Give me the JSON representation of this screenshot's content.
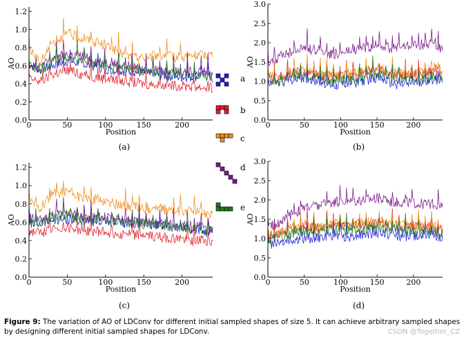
{
  "figure_caption": {
    "label": "Figure 9:",
    "text": "The variation of AO of LDConv for different initial sampled shapes of size 5. It can achieve arbitrary sampled shapes by designing different initial sampled shapes for LDConv."
  },
  "watermark": "CSDN @Together_CZ",
  "legend": [
    {
      "key": "a",
      "color": "#1f1fd6",
      "shape_cells": [
        [
          0,
          0
        ],
        [
          2,
          0
        ],
        [
          1,
          1
        ],
        [
          0,
          2
        ],
        [
          2,
          2
        ]
      ]
    },
    {
      "key": "b",
      "color": "#e0202a",
      "shape_cells": [
        [
          0,
          0
        ],
        [
          1,
          0
        ],
        [
          2,
          0
        ],
        [
          0,
          1
        ],
        [
          2,
          1
        ]
      ]
    },
    {
      "key": "c",
      "color": "#f0901f",
      "shape_cells": [
        [
          0,
          0
        ],
        [
          1,
          0
        ],
        [
          2,
          0
        ],
        [
          3,
          0
        ],
        [
          1,
          1
        ]
      ]
    },
    {
      "key": "d",
      "color": "#7a1a8c",
      "shape_cells": [
        [
          0,
          0
        ],
        [
          1,
          1
        ],
        [
          2,
          2
        ],
        [
          3,
          3
        ],
        [
          4,
          4
        ]
      ]
    },
    {
      "key": "e",
      "color": "#1f7a1f",
      "shape_cells": [
        [
          0,
          0
        ],
        [
          0,
          1
        ],
        [
          1,
          1
        ],
        [
          2,
          1
        ],
        [
          3,
          1
        ]
      ]
    }
  ],
  "chart_data": [
    {
      "panel": "(a)",
      "type": "line",
      "xlabel": "Position",
      "ylabel": "AO",
      "xlim": [
        0,
        240
      ],
      "ylim": [
        0,
        1.25
      ],
      "xticks": [
        0,
        50,
        100,
        150,
        200
      ],
      "yticks": [
        0.0,
        0.2,
        0.4,
        0.6,
        0.8,
        1.0,
        1.2
      ],
      "ytick_labels": [
        "0.0",
        "0.2",
        "0.4",
        "0.6",
        "0.8",
        "1.0",
        "1.2"
      ],
      "series": [
        {
          "name": "a",
          "color": "#1f1fd6",
          "x": [
            0,
            15,
            30,
            50,
            70,
            90,
            110,
            130,
            150,
            170,
            190,
            210,
            230,
            240
          ],
          "y": [
            0.62,
            0.55,
            0.6,
            0.65,
            0.62,
            0.58,
            0.55,
            0.54,
            0.52,
            0.5,
            0.48,
            0.47,
            0.5,
            0.45
          ]
        },
        {
          "name": "b",
          "color": "#e0202a",
          "x": [
            0,
            15,
            30,
            50,
            70,
            90,
            110,
            130,
            150,
            170,
            190,
            210,
            230,
            240
          ],
          "y": [
            0.45,
            0.42,
            0.5,
            0.55,
            0.5,
            0.47,
            0.44,
            0.42,
            0.4,
            0.38,
            0.38,
            0.37,
            0.36,
            0.35
          ]
        },
        {
          "name": "c",
          "color": "#f0901f",
          "x": [
            0,
            15,
            30,
            50,
            70,
            90,
            110,
            130,
            150,
            170,
            190,
            210,
            230,
            240
          ],
          "y": [
            0.8,
            0.62,
            0.85,
            0.95,
            0.9,
            0.85,
            0.78,
            0.7,
            0.68,
            0.72,
            0.7,
            0.7,
            0.72,
            0.72
          ]
        },
        {
          "name": "d",
          "color": "#7a1a8c",
          "x": [
            0,
            15,
            30,
            50,
            70,
            90,
            110,
            130,
            150,
            170,
            190,
            210,
            230,
            240
          ],
          "y": [
            0.62,
            0.58,
            0.68,
            0.72,
            0.7,
            0.65,
            0.62,
            0.6,
            0.57,
            0.55,
            0.55,
            0.53,
            0.55,
            0.52
          ]
        },
        {
          "name": "e",
          "color": "#1f7a1f",
          "x": [
            0,
            15,
            30,
            50,
            70,
            90,
            110,
            130,
            150,
            170,
            190,
            210,
            230,
            240
          ],
          "y": [
            0.6,
            0.55,
            0.65,
            0.7,
            0.66,
            0.62,
            0.58,
            0.56,
            0.54,
            0.52,
            0.5,
            0.5,
            0.48,
            0.47
          ]
        }
      ]
    },
    {
      "panel": "(b)",
      "type": "line",
      "xlabel": "Position",
      "ylabel": "AO",
      "xlim": [
        0,
        240
      ],
      "ylim": [
        0,
        3.0
      ],
      "xticks": [
        0,
        50,
        100,
        150,
        200
      ],
      "yticks": [
        0.0,
        0.5,
        1.0,
        1.5,
        2.0,
        2.5,
        3.0
      ],
      "ytick_labels": [
        "0.0",
        "0.5",
        "1.0",
        "1.5",
        "2.0",
        "2.5",
        "3.0"
      ],
      "series": [
        {
          "name": "a",
          "color": "#1f1fd6",
          "x": [
            0,
            15,
            30,
            50,
            70,
            90,
            110,
            130,
            150,
            170,
            190,
            210,
            230,
            240
          ],
          "y": [
            1.0,
            0.95,
            1.05,
            1.1,
            1.0,
            0.9,
            0.95,
            1.0,
            1.1,
            0.95,
            0.9,
            1.0,
            1.05,
            1.0
          ]
        },
        {
          "name": "b",
          "color": "#e0202a",
          "x": [
            0,
            15,
            30,
            50,
            70,
            90,
            110,
            130,
            150,
            170,
            190,
            210,
            230,
            240
          ],
          "y": [
            1.1,
            1.05,
            1.2,
            1.25,
            1.15,
            1.1,
            1.15,
            1.2,
            1.3,
            1.2,
            1.15,
            1.2,
            1.3,
            1.2
          ]
        },
        {
          "name": "c",
          "color": "#f0901f",
          "x": [
            0,
            15,
            30,
            50,
            70,
            90,
            110,
            130,
            150,
            170,
            190,
            210,
            230,
            240
          ],
          "y": [
            1.15,
            1.1,
            1.25,
            1.3,
            1.2,
            1.15,
            1.2,
            1.25,
            1.35,
            1.25,
            1.2,
            1.25,
            1.35,
            1.3
          ]
        },
        {
          "name": "d",
          "color": "#7a1a8c",
          "x": [
            0,
            15,
            30,
            50,
            70,
            90,
            110,
            130,
            150,
            170,
            190,
            210,
            230,
            240
          ],
          "y": [
            1.5,
            1.6,
            1.75,
            1.85,
            1.8,
            1.7,
            1.75,
            1.85,
            1.95,
            1.85,
            1.9,
            1.95,
            2.0,
            1.8
          ]
        },
        {
          "name": "e",
          "color": "#1f7a1f",
          "x": [
            0,
            15,
            30,
            50,
            70,
            90,
            110,
            130,
            150,
            170,
            190,
            210,
            230,
            240
          ],
          "y": [
            1.05,
            1.0,
            1.1,
            1.2,
            1.1,
            1.0,
            1.05,
            1.1,
            1.2,
            1.1,
            1.05,
            1.1,
            1.15,
            1.05
          ]
        }
      ]
    },
    {
      "panel": "(c)",
      "type": "line",
      "xlabel": "Position",
      "ylabel": "AO",
      "xlim": [
        0,
        240
      ],
      "ylim": [
        0,
        1.25
      ],
      "xticks": [
        0,
        50,
        100,
        150,
        200
      ],
      "yticks": [
        0.0,
        0.2,
        0.4,
        0.6,
        0.8,
        1.0,
        1.2
      ],
      "ytick_labels": [
        "0.0",
        "0.2",
        "0.4",
        "0.6",
        "0.8",
        "1.0",
        "1.2"
      ],
      "series": [
        {
          "name": "a",
          "color": "#1f1fd6",
          "x": [
            0,
            15,
            30,
            50,
            70,
            90,
            110,
            130,
            150,
            170,
            190,
            210,
            230,
            240
          ],
          "y": [
            0.6,
            0.58,
            0.62,
            0.63,
            0.6,
            0.62,
            0.6,
            0.58,
            0.6,
            0.56,
            0.55,
            0.52,
            0.5,
            0.48
          ]
        },
        {
          "name": "b",
          "color": "#e0202a",
          "x": [
            0,
            15,
            30,
            50,
            70,
            90,
            110,
            130,
            150,
            170,
            190,
            210,
            230,
            240
          ],
          "y": [
            0.5,
            0.48,
            0.52,
            0.55,
            0.5,
            0.5,
            0.48,
            0.47,
            0.46,
            0.44,
            0.42,
            0.4,
            0.4,
            0.38
          ]
        },
        {
          "name": "c",
          "color": "#f0901f",
          "x": [
            0,
            15,
            30,
            50,
            70,
            90,
            110,
            130,
            150,
            170,
            190,
            210,
            230,
            240
          ],
          "y": [
            0.85,
            0.75,
            0.9,
            0.95,
            0.85,
            0.85,
            0.8,
            0.78,
            0.75,
            0.75,
            0.72,
            0.72,
            0.7,
            0.7
          ]
        },
        {
          "name": "d",
          "color": "#7a1a8c",
          "x": [
            0,
            15,
            30,
            50,
            70,
            90,
            110,
            130,
            150,
            170,
            190,
            210,
            230,
            240
          ],
          "y": [
            0.65,
            0.62,
            0.68,
            0.7,
            0.66,
            0.66,
            0.63,
            0.62,
            0.6,
            0.58,
            0.57,
            0.56,
            0.55,
            0.52
          ]
        },
        {
          "name": "e",
          "color": "#1f7a1f",
          "x": [
            0,
            15,
            30,
            50,
            70,
            90,
            110,
            130,
            150,
            170,
            190,
            210,
            230,
            240
          ],
          "y": [
            0.62,
            0.6,
            0.65,
            0.68,
            0.63,
            0.63,
            0.6,
            0.6,
            0.58,
            0.56,
            0.55,
            0.53,
            0.52,
            0.5
          ]
        }
      ]
    },
    {
      "panel": "(d)",
      "type": "line",
      "xlabel": "Position",
      "ylabel": "AO",
      "xlim": [
        0,
        240
      ],
      "ylim": [
        0,
        3.0
      ],
      "xticks": [
        0,
        50,
        100,
        150,
        200
      ],
      "yticks": [
        0.0,
        0.5,
        1.0,
        1.5,
        2.0,
        2.5,
        3.0
      ],
      "ytick_labels": [
        "0.0",
        "0.5",
        "1.0",
        "1.5",
        "2.0",
        "2.5",
        "3.0"
      ],
      "series": [
        {
          "name": "a",
          "color": "#1f1fd6",
          "x": [
            0,
            15,
            30,
            50,
            70,
            90,
            110,
            130,
            150,
            170,
            190,
            210,
            230,
            240
          ],
          "y": [
            0.85,
            0.9,
            0.95,
            1.0,
            1.0,
            1.1,
            1.05,
            1.1,
            1.15,
            1.1,
            1.05,
            1.1,
            1.1,
            1.0
          ]
        },
        {
          "name": "b",
          "color": "#e0202a",
          "x": [
            0,
            15,
            30,
            50,
            70,
            90,
            110,
            130,
            150,
            170,
            190,
            210,
            230,
            240
          ],
          "y": [
            1.05,
            1.1,
            1.2,
            1.3,
            1.25,
            1.35,
            1.3,
            1.35,
            1.4,
            1.35,
            1.3,
            1.3,
            1.3,
            1.2
          ]
        },
        {
          "name": "c",
          "color": "#f0901f",
          "x": [
            0,
            15,
            30,
            50,
            70,
            90,
            110,
            130,
            150,
            170,
            190,
            210,
            230,
            240
          ],
          "y": [
            1.1,
            1.15,
            1.25,
            1.35,
            1.3,
            1.4,
            1.35,
            1.4,
            1.45,
            1.4,
            1.35,
            1.35,
            1.35,
            1.25
          ]
        },
        {
          "name": "d",
          "color": "#7a1a8c",
          "x": [
            0,
            15,
            30,
            50,
            70,
            90,
            110,
            130,
            150,
            170,
            190,
            210,
            230,
            240
          ],
          "y": [
            1.3,
            1.4,
            1.6,
            1.8,
            1.85,
            1.95,
            1.95,
            2.0,
            2.05,
            1.95,
            1.95,
            1.9,
            1.9,
            1.8
          ]
        },
        {
          "name": "e",
          "color": "#1f7a1f",
          "x": [
            0,
            15,
            30,
            50,
            70,
            90,
            110,
            130,
            150,
            170,
            190,
            210,
            230,
            240
          ],
          "y": [
            0.95,
            1.0,
            1.1,
            1.2,
            1.15,
            1.25,
            1.2,
            1.25,
            1.3,
            1.25,
            1.2,
            1.2,
            1.2,
            1.1
          ]
        }
      ]
    }
  ]
}
